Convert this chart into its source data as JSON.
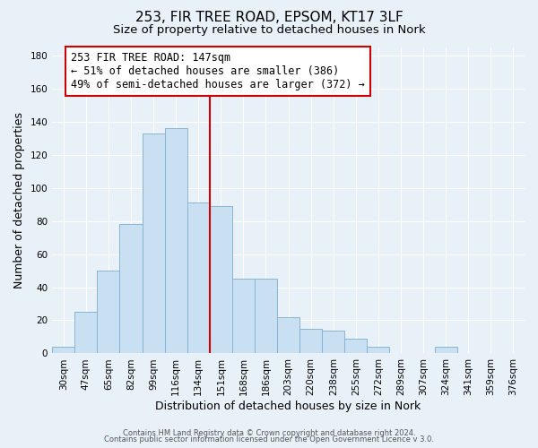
{
  "title1": "253, FIR TREE ROAD, EPSOM, KT17 3LF",
  "title2": "Size of property relative to detached houses in Nork",
  "xlabel": "Distribution of detached houses by size in Nork",
  "ylabel": "Number of detached properties",
  "footer1": "Contains HM Land Registry data © Crown copyright and database right 2024.",
  "footer2": "Contains public sector information licensed under the Open Government Licence v 3.0.",
  "annotation_title": "253 FIR TREE ROAD: 147sqm",
  "annotation_line1": "← 51% of detached houses are smaller (386)",
  "annotation_line2": "49% of semi-detached houses are larger (372) →",
  "bar_labels": [
    "30sqm",
    "47sqm",
    "65sqm",
    "82sqm",
    "99sqm",
    "116sqm",
    "134sqm",
    "151sqm",
    "168sqm",
    "186sqm",
    "203sqm",
    "220sqm",
    "238sqm",
    "255sqm",
    "272sqm",
    "289sqm",
    "307sqm",
    "324sqm",
    "341sqm",
    "359sqm",
    "376sqm"
  ],
  "bar_values": [
    4,
    25,
    50,
    78,
    133,
    136,
    91,
    89,
    45,
    45,
    22,
    15,
    14,
    9,
    4,
    0,
    0,
    4,
    0,
    0,
    0
  ],
  "bar_color": "#c9dff2",
  "bar_edge_color": "#8ab4d4",
  "vline_x": 7,
  "vline_color": "#cc0000",
  "ylim": [
    0,
    185
  ],
  "yticks": [
    0,
    20,
    40,
    60,
    80,
    100,
    120,
    140,
    160,
    180
  ],
  "bg_color": "#e8f0f8",
  "plot_bg_color": "#e8f0f8",
  "annotation_box_color": "#ffffff",
  "annotation_box_edge": "#cc0000",
  "title_fontsize": 11,
  "subtitle_fontsize": 9.5,
  "axis_label_fontsize": 9,
  "tick_fontsize": 7.5,
  "annotation_fontsize": 8.5,
  "footer_fontsize": 6
}
